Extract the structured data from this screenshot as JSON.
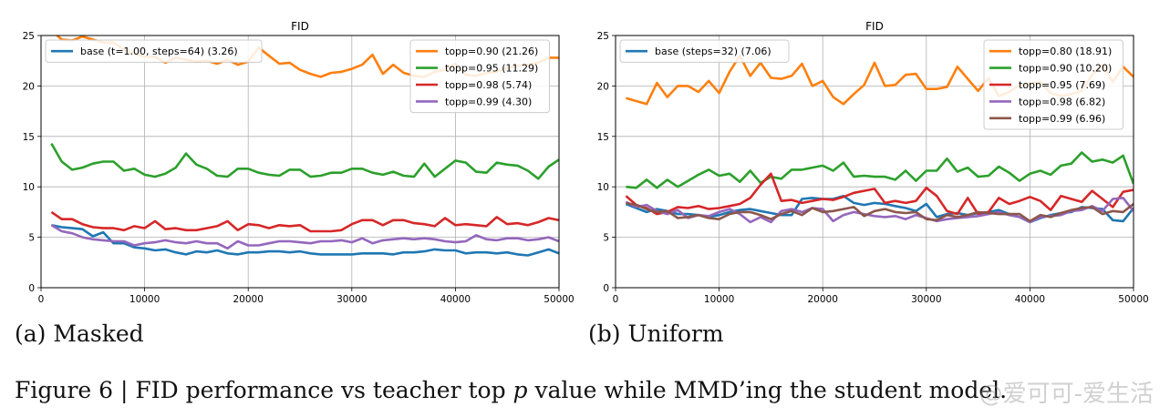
{
  "chart_data": [
    {
      "type": "line",
      "title": "FID",
      "xlabel": "",
      "ylabel": "",
      "xlim": [
        0,
        50000
      ],
      "ylim": [
        0,
        25
      ],
      "xticks": [
        0,
        10000,
        20000,
        30000,
        40000,
        50000
      ],
      "xtick_labels": [
        "0",
        "10000",
        "20000",
        "30000",
        "40000",
        "50000"
      ],
      "yticks": [
        0,
        5,
        10,
        15,
        20,
        25
      ],
      "ytick_labels": [
        "0",
        "5",
        "10",
        "15",
        "20",
        "25"
      ],
      "grid": true,
      "x": [
        1000,
        2000,
        3000,
        4000,
        5000,
        6000,
        7000,
        8000,
        9000,
        10000,
        11000,
        12000,
        13000,
        14000,
        15000,
        16000,
        17000,
        18000,
        19000,
        20000,
        21000,
        22000,
        23000,
        24000,
        25000,
        26000,
        27000,
        28000,
        29000,
        30000,
        31000,
        32000,
        33000,
        34000,
        35000,
        36000,
        37000,
        38000,
        39000,
        40000,
        41000,
        42000,
        43000,
        44000,
        45000,
        46000,
        47000,
        48000,
        49000,
        50000
      ],
      "series": [
        {
          "name": "base (t=1.00, steps=64) (3.26)",
          "legend_group": "left",
          "color": "#1f77b4",
          "values": [
            6.2,
            6.0,
            5.9,
            5.8,
            5.1,
            5.5,
            4.4,
            4.4,
            4.0,
            3.9,
            3.7,
            3.8,
            3.5,
            3.3,
            3.6,
            3.5,
            3.7,
            3.4,
            3.3,
            3.5,
            3.5,
            3.6,
            3.6,
            3.5,
            3.6,
            3.4,
            3.3,
            3.3,
            3.3,
            3.3,
            3.4,
            3.4,
            3.4,
            3.3,
            3.5,
            3.5,
            3.6,
            3.8,
            3.7,
            3.7,
            3.4,
            3.5,
            3.5,
            3.4,
            3.5,
            3.3,
            3.2,
            3.5,
            3.8,
            3.4
          ]
        },
        {
          "name": "topp=0.90 (21.26)",
          "legend_group": "right",
          "color": "#ff7f0e",
          "values": [
            25.5,
            24.6,
            24.5,
            24.9,
            24.6,
            24.3,
            24.3,
            23.6,
            23.2,
            22.9,
            22.9,
            22.3,
            22.8,
            22.6,
            22.4,
            22.5,
            22.2,
            22.6,
            22.1,
            22.4,
            23.8,
            23.0,
            22.2,
            22.3,
            21.6,
            21.2,
            20.9,
            21.3,
            21.4,
            21.7,
            22.1,
            23.1,
            21.2,
            22.1,
            21.3,
            21.0,
            20.9,
            21.4,
            21.6,
            22.2,
            21.1,
            21.0,
            21.3,
            21.4,
            21.8,
            22.0,
            22.1,
            22.3,
            22.8,
            22.8
          ]
        },
        {
          "name": "topp=0.95 (11.29)",
          "legend_group": "right",
          "color": "#2ca02c",
          "values": [
            14.3,
            12.5,
            11.7,
            11.9,
            12.3,
            12.5,
            12.5,
            11.6,
            11.8,
            11.2,
            11.0,
            11.3,
            11.9,
            13.3,
            12.2,
            11.8,
            11.1,
            11.0,
            11.8,
            11.8,
            11.4,
            11.2,
            11.1,
            11.7,
            11.7,
            11.0,
            11.1,
            11.4,
            11.4,
            11.8,
            11.8,
            11.4,
            11.2,
            11.5,
            11.1,
            11.0,
            12.3,
            11.0,
            11.8,
            12.6,
            12.4,
            11.5,
            11.4,
            12.4,
            12.2,
            12.1,
            11.6,
            10.8,
            12.0,
            12.7
          ]
        },
        {
          "name": "topp=0.98 (5.74)",
          "legend_group": "right",
          "color": "#d62728",
          "values": [
            7.5,
            6.8,
            6.8,
            6.3,
            6.0,
            5.9,
            5.9,
            5.7,
            6.1,
            5.9,
            6.6,
            5.8,
            5.9,
            5.7,
            5.7,
            5.9,
            6.1,
            6.6,
            5.7,
            6.3,
            6.2,
            5.9,
            6.2,
            6.1,
            6.2,
            5.6,
            5.6,
            5.6,
            5.7,
            6.3,
            6.7,
            6.7,
            6.2,
            6.7,
            6.7,
            6.4,
            6.3,
            6.1,
            6.9,
            6.2,
            6.3,
            6.2,
            6.1,
            7.0,
            6.3,
            6.4,
            6.2,
            6.5,
            6.9,
            6.7
          ]
        },
        {
          "name": "topp=0.99 (4.30)",
          "legend_group": "right",
          "color": "#9467bd",
          "values": [
            6.2,
            5.6,
            5.4,
            5.0,
            4.8,
            4.7,
            4.6,
            4.6,
            4.2,
            4.4,
            4.5,
            4.7,
            4.5,
            4.4,
            4.6,
            4.4,
            4.4,
            3.9,
            4.6,
            4.2,
            4.2,
            4.4,
            4.6,
            4.6,
            4.5,
            4.4,
            4.6,
            4.6,
            4.7,
            4.5,
            4.9,
            4.4,
            4.7,
            4.8,
            4.9,
            4.8,
            4.9,
            4.8,
            4.6,
            4.5,
            4.6,
            5.2,
            4.8,
            4.7,
            4.9,
            4.9,
            4.7,
            4.8,
            5.0,
            4.6
          ]
        }
      ]
    },
    {
      "type": "line",
      "title": "FID",
      "xlabel": "",
      "ylabel": "",
      "xlim": [
        0,
        50000
      ],
      "ylim": [
        0,
        25
      ],
      "xticks": [
        0,
        10000,
        20000,
        30000,
        40000,
        50000
      ],
      "xtick_labels": [
        "0",
        "10000",
        "20000",
        "30000",
        "40000",
        "50000"
      ],
      "yticks": [
        0,
        5,
        10,
        15,
        20,
        25
      ],
      "ytick_labels": [
        "0",
        "5",
        "10",
        "15",
        "20",
        "25"
      ],
      "grid": true,
      "x": [
        1000,
        2000,
        3000,
        4000,
        5000,
        6000,
        7000,
        8000,
        9000,
        10000,
        11000,
        12000,
        13000,
        14000,
        15000,
        16000,
        17000,
        18000,
        19000,
        20000,
        21000,
        22000,
        23000,
        24000,
        25000,
        26000,
        27000,
        28000,
        29000,
        30000,
        31000,
        32000,
        33000,
        34000,
        35000,
        36000,
        37000,
        38000,
        39000,
        40000,
        41000,
        42000,
        43000,
        44000,
        45000,
        46000,
        47000,
        48000,
        49000,
        50000
      ],
      "series": [
        {
          "name": "base (steps=32) (7.06)",
          "legend_group": "left",
          "color": "#1f77b4",
          "values": [
            8.3,
            7.9,
            7.5,
            7.8,
            7.6,
            7.3,
            7.3,
            7.2,
            7.0,
            7.2,
            7.5,
            7.7,
            7.8,
            7.6,
            7.4,
            7.2,
            7.2,
            8.8,
            8.9,
            8.8,
            8.8,
            9.1,
            8.4,
            8.2,
            8.4,
            8.3,
            8.1,
            7.9,
            7.6,
            8.3,
            7.0,
            7.3,
            7.4,
            7.2,
            7.4,
            7.5,
            7.7,
            7.3,
            7.0,
            6.5,
            6.9,
            7.2,
            7.4,
            7.5,
            8.0,
            7.9,
            7.8,
            6.7,
            6.6,
            7.9
          ]
        },
        {
          "name": "topp=0.80 (18.91)",
          "legend_group": "right",
          "color": "#ff7f0e",
          "values": [
            18.8,
            18.5,
            18.2,
            20.3,
            18.9,
            20.0,
            20.0,
            19.4,
            20.5,
            19.3,
            21.4,
            23.0,
            21.0,
            22.3,
            20.8,
            20.7,
            21.0,
            22.2,
            20.0,
            20.5,
            18.9,
            18.2,
            19.2,
            20.1,
            22.3,
            20.0,
            20.1,
            21.1,
            21.2,
            19.7,
            19.7,
            19.9,
            21.9,
            20.7,
            19.5,
            20.8,
            19.0,
            19.4,
            20.1,
            20.2,
            20.4,
            19.3,
            19.0,
            19.2,
            19.5,
            21.1,
            22.1,
            20.4,
            21.9,
            20.9
          ]
        },
        {
          "name": "topp=0.90 (10.20)",
          "legend_group": "right",
          "color": "#2ca02c",
          "values": [
            10.0,
            9.9,
            10.7,
            9.9,
            10.7,
            10.0,
            10.6,
            11.2,
            11.7,
            11.1,
            11.3,
            10.5,
            11.6,
            10.4,
            11.0,
            10.8,
            11.7,
            11.7,
            11.9,
            12.1,
            11.6,
            12.4,
            11.0,
            11.1,
            11.0,
            11.0,
            10.7,
            11.6,
            10.6,
            11.6,
            11.6,
            12.8,
            11.5,
            11.9,
            11.0,
            11.1,
            12.0,
            11.4,
            10.6,
            11.3,
            11.6,
            11.2,
            12.1,
            12.3,
            13.4,
            12.5,
            12.7,
            12.4,
            13.1,
            10.3
          ]
        },
        {
          "name": "topp=0.95 (7.69)",
          "legend_group": "right",
          "color": "#d62728",
          "values": [
            9.1,
            8.2,
            7.9,
            7.3,
            7.5,
            8.0,
            7.9,
            8.1,
            7.8,
            7.9,
            8.1,
            8.3,
            8.9,
            10.2,
            11.3,
            8.6,
            8.7,
            8.4,
            8.6,
            8.8,
            8.7,
            9.0,
            9.4,
            9.6,
            9.8,
            8.4,
            8.6,
            8.4,
            8.6,
            9.9,
            9.1,
            7.6,
            7.3,
            8.9,
            7.3,
            7.5,
            8.9,
            8.3,
            8.6,
            9.0,
            8.6,
            7.7,
            9.1,
            8.8,
            8.5,
            9.6,
            8.8,
            8.0,
            9.5,
            9.7
          ]
        },
        {
          "name": "topp=0.98 (6.82)",
          "legend_group": "right",
          "color": "#9467bd",
          "values": [
            8.5,
            8.0,
            8.2,
            7.6,
            7.3,
            7.7,
            6.9,
            7.2,
            7.1,
            7.5,
            7.8,
            7.3,
            6.5,
            7.0,
            6.5,
            7.6,
            7.8,
            7.5,
            7.9,
            7.8,
            6.6,
            7.2,
            7.5,
            7.3,
            7.1,
            7.0,
            7.1,
            6.8,
            7.2,
            6.9,
            6.6,
            6.8,
            6.9,
            7.0,
            7.1,
            7.3,
            7.5,
            7.2,
            7.0,
            6.5,
            7.0,
            7.1,
            7.2,
            7.6,
            7.7,
            8.1,
            7.6,
            8.8,
            8.9,
            7.6
          ]
        },
        {
          "name": "topp=0.99 (6.96)",
          "legend_group": "right",
          "color": "#8c564b",
          "values": [
            8.4,
            8.2,
            7.8,
            7.5,
            7.6,
            6.9,
            7.0,
            7.2,
            6.9,
            6.8,
            7.3,
            7.5,
            7.5,
            7.2,
            6.8,
            7.3,
            7.6,
            7.2,
            7.9,
            7.5,
            7.6,
            7.8,
            8.0,
            7.1,
            7.6,
            7.8,
            7.5,
            7.4,
            7.5,
            6.8,
            6.7,
            7.2,
            7.0,
            7.2,
            7.5,
            7.4,
            7.3,
            7.3,
            7.3,
            6.6,
            7.2,
            7.0,
            7.4,
            7.7,
            7.9,
            8.0,
            7.3,
            7.6,
            7.5,
            8.3
          ]
        }
      ]
    }
  ],
  "captions": {
    "subcaption_a": "(a) Masked",
    "subcaption_b": "(b) Uniform",
    "figure_prefix": "Figure 6 | FID performance vs teacher top ",
    "figure_var": "p",
    "figure_suffix": " value while MMD’ing the student model."
  },
  "watermark": "@爱可可-爱生活"
}
